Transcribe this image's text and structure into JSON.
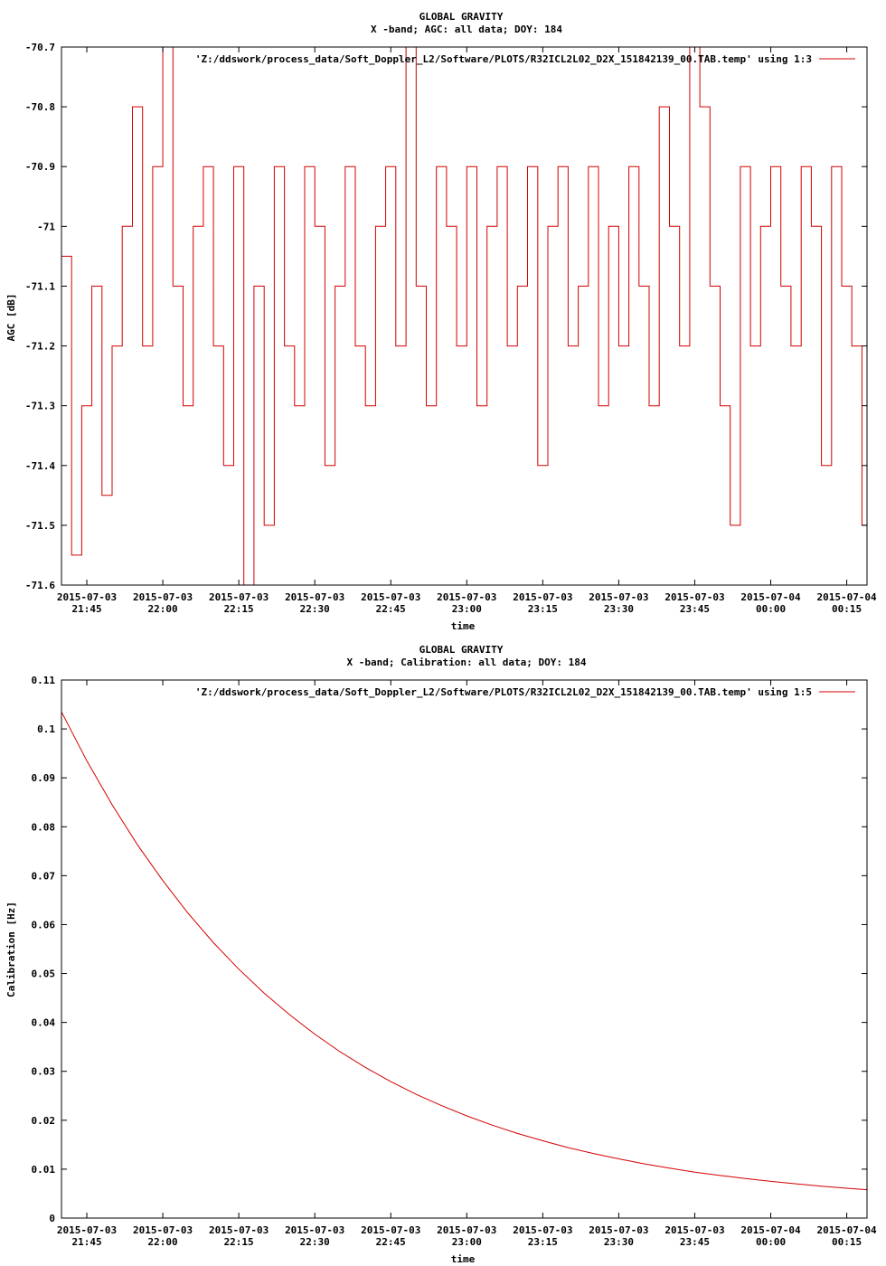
{
  "colors": {
    "series": "#d40000",
    "axis": "#000000",
    "background": "#ffffff"
  },
  "chart_data": [
    {
      "type": "line",
      "title": "GLOBAL GRAVITY",
      "subtitle": "X -band; AGC: all data; DOY: 184",
      "xlabel": "time",
      "ylabel": "AGC [dB]",
      "xlim": [
        "2015-07-03 21:40",
        "2015-07-04 00:19"
      ],
      "ylim": [
        -71.6,
        -70.7
      ],
      "grid": false,
      "legend_position": "top-right",
      "yticks": [
        {
          "value": -70.7,
          "label": "-70.7"
        },
        {
          "value": -70.8,
          "label": "-70.8"
        },
        {
          "value": -70.9,
          "label": "-70.9"
        },
        {
          "value": -71.0,
          "label": "-71"
        },
        {
          "value": -71.1,
          "label": "-71.1"
        },
        {
          "value": -71.2,
          "label": "-71.2"
        },
        {
          "value": -71.3,
          "label": "-71.3"
        },
        {
          "value": -71.4,
          "label": "-71.4"
        },
        {
          "value": -71.5,
          "label": "-71.5"
        },
        {
          "value": -71.6,
          "label": "-71.6"
        }
      ],
      "xticks": [
        {
          "value": "2015-07-03 21:45",
          "date": "2015-07-03",
          "time": "21:45"
        },
        {
          "value": "2015-07-03 22:00",
          "date": "2015-07-03",
          "time": "22:00"
        },
        {
          "value": "2015-07-03 22:15",
          "date": "2015-07-03",
          "time": "22:15"
        },
        {
          "value": "2015-07-03 22:30",
          "date": "2015-07-03",
          "time": "22:30"
        },
        {
          "value": "2015-07-03 22:45",
          "date": "2015-07-03",
          "time": "22:45"
        },
        {
          "value": "2015-07-03 23:00",
          "date": "2015-07-03",
          "time": "23:00"
        },
        {
          "value": "2015-07-03 23:15",
          "date": "2015-07-03",
          "time": "23:15"
        },
        {
          "value": "2015-07-03 23:30",
          "date": "2015-07-03",
          "time": "23:30"
        },
        {
          "value": "2015-07-03 23:45",
          "date": "2015-07-03",
          "time": "23:45"
        },
        {
          "value": "2015-07-04 00:00",
          "date": "2015-07-04",
          "time": "00:00"
        },
        {
          "value": "2015-07-04 00:15",
          "date": "2015-07-04",
          "time": "00:15"
        }
      ],
      "series": [
        {
          "name": "'Z:/ddswork/process_data/Soft_Doppler_L2/Software/PLOTS/R32ICL2L02_D2X_151842139_00.TAB.temp' using 1:3",
          "x": [
            "2015-07-03 21:40",
            "2015-07-03 21:42",
            "2015-07-03 21:44",
            "2015-07-03 21:46",
            "2015-07-03 21:48",
            "2015-07-03 21:50",
            "2015-07-03 21:52",
            "2015-07-03 21:54",
            "2015-07-03 21:56",
            "2015-07-03 21:58",
            "2015-07-03 22:00",
            "2015-07-03 22:02",
            "2015-07-03 22:04",
            "2015-07-03 22:06",
            "2015-07-03 22:08",
            "2015-07-03 22:10",
            "2015-07-03 22:12",
            "2015-07-03 22:14",
            "2015-07-03 22:16",
            "2015-07-03 22:18",
            "2015-07-03 22:20",
            "2015-07-03 22:22",
            "2015-07-03 22:24",
            "2015-07-03 22:26",
            "2015-07-03 22:28",
            "2015-07-03 22:30",
            "2015-07-03 22:32",
            "2015-07-03 22:34",
            "2015-07-03 22:36",
            "2015-07-03 22:38",
            "2015-07-03 22:40",
            "2015-07-03 22:42",
            "2015-07-03 22:44",
            "2015-07-03 22:46",
            "2015-07-03 22:48",
            "2015-07-03 22:50",
            "2015-07-03 22:52",
            "2015-07-03 22:54",
            "2015-07-03 22:56",
            "2015-07-03 22:58",
            "2015-07-03 23:00",
            "2015-07-03 23:02",
            "2015-07-03 23:04",
            "2015-07-03 23:06",
            "2015-07-03 23:08",
            "2015-07-03 23:10",
            "2015-07-03 23:12",
            "2015-07-03 23:14",
            "2015-07-03 23:16",
            "2015-07-03 23:18",
            "2015-07-03 23:20",
            "2015-07-03 23:22",
            "2015-07-03 23:24",
            "2015-07-03 23:26",
            "2015-07-03 23:28",
            "2015-07-03 23:30",
            "2015-07-03 23:32",
            "2015-07-03 23:34",
            "2015-07-03 23:36",
            "2015-07-03 23:38",
            "2015-07-03 23:40",
            "2015-07-03 23:42",
            "2015-07-03 23:44",
            "2015-07-03 23:46",
            "2015-07-03 23:48",
            "2015-07-03 23:50",
            "2015-07-03 23:52",
            "2015-07-03 23:54",
            "2015-07-03 23:56",
            "2015-07-03 23:58",
            "2015-07-04 00:00",
            "2015-07-04 00:02",
            "2015-07-04 00:04",
            "2015-07-04 00:06",
            "2015-07-04 00:08",
            "2015-07-04 00:10",
            "2015-07-04 00:12",
            "2015-07-04 00:14",
            "2015-07-04 00:16",
            "2015-07-04 00:18",
            "2015-07-04 00:19"
          ],
          "values": [
            -71.05,
            -71.55,
            -71.3,
            -71.1,
            -71.45,
            -71.2,
            -71.0,
            -70.8,
            -71.2,
            -70.9,
            -70.7,
            -71.1,
            -71.3,
            -71.0,
            -70.9,
            -71.2,
            -71.4,
            -70.9,
            -71.6,
            -71.1,
            -71.5,
            -70.9,
            -71.2,
            -71.3,
            -70.9,
            -71.0,
            -71.4,
            -71.1,
            -70.9,
            -71.2,
            -71.3,
            -71.0,
            -70.9,
            -71.2,
            -70.7,
            -71.1,
            -71.3,
            -70.9,
            -71.0,
            -71.2,
            -70.9,
            -71.3,
            -71.0,
            -70.9,
            -71.2,
            -71.1,
            -70.9,
            -71.4,
            -71.0,
            -70.9,
            -71.2,
            -71.1,
            -70.9,
            -71.3,
            -71.0,
            -71.2,
            -70.9,
            -71.1,
            -71.3,
            -70.8,
            -71.0,
            -71.2,
            -70.7,
            -70.8,
            -71.1,
            -71.3,
            -71.5,
            -70.9,
            -71.2,
            -71.0,
            -70.9,
            -71.1,
            -71.2,
            -70.9,
            -71.0,
            -71.4,
            -70.9,
            -71.1,
            -71.2,
            -71.5,
            -71.1
          ]
        }
      ]
    },
    {
      "type": "line",
      "title": "GLOBAL GRAVITY",
      "subtitle": "X -band; Calibration: all data; DOY: 184",
      "xlabel": "time",
      "ylabel": "Calibration [Hz]",
      "xlim": [
        "2015-07-03 21:40",
        "2015-07-04 00:19"
      ],
      "ylim": [
        0,
        0.11
      ],
      "grid": false,
      "legend_position": "top-right",
      "yticks": [
        {
          "value": 0.11,
          "label": "0.11"
        },
        {
          "value": 0.1,
          "label": "0.1"
        },
        {
          "value": 0.09,
          "label": "0.09"
        },
        {
          "value": 0.08,
          "label": "0.08"
        },
        {
          "value": 0.07,
          "label": "0.07"
        },
        {
          "value": 0.06,
          "label": "0.06"
        },
        {
          "value": 0.05,
          "label": "0.05"
        },
        {
          "value": 0.04,
          "label": "0.04"
        },
        {
          "value": 0.03,
          "label": "0.03"
        },
        {
          "value": 0.02,
          "label": "0.02"
        },
        {
          "value": 0.01,
          "label": "0.01"
        },
        {
          "value": 0.0,
          "label": "0"
        }
      ],
      "xticks": [
        {
          "value": "2015-07-03 21:45",
          "date": "2015-07-03",
          "time": "21:45"
        },
        {
          "value": "2015-07-03 22:00",
          "date": "2015-07-03",
          "time": "22:00"
        },
        {
          "value": "2015-07-03 22:15",
          "date": "2015-07-03",
          "time": "22:15"
        },
        {
          "value": "2015-07-03 22:30",
          "date": "2015-07-03",
          "time": "22:30"
        },
        {
          "value": "2015-07-03 22:45",
          "date": "2015-07-03",
          "time": "22:45"
        },
        {
          "value": "2015-07-03 23:00",
          "date": "2015-07-03",
          "time": "23:00"
        },
        {
          "value": "2015-07-03 23:15",
          "date": "2015-07-03",
          "time": "23:15"
        },
        {
          "value": "2015-07-03 23:30",
          "date": "2015-07-03",
          "time": "23:30"
        },
        {
          "value": "2015-07-03 23:45",
          "date": "2015-07-03",
          "time": "23:45"
        },
        {
          "value": "2015-07-04 00:00",
          "date": "2015-07-04",
          "time": "00:00"
        },
        {
          "value": "2015-07-04 00:15",
          "date": "2015-07-04",
          "time": "00:15"
        }
      ],
      "series": [
        {
          "name": "'Z:/ddswork/process_data/Soft_Doppler_L2/Software/PLOTS/R32ICL2L02_D2X_151842139_00.TAB.temp' using 1:5",
          "x": [
            "2015-07-03 21:40",
            "2015-07-03 21:45",
            "2015-07-03 21:50",
            "2015-07-03 21:55",
            "2015-07-03 22:00",
            "2015-07-03 22:05",
            "2015-07-03 22:10",
            "2015-07-03 22:15",
            "2015-07-03 22:20",
            "2015-07-03 22:25",
            "2015-07-03 22:30",
            "2015-07-03 22:35",
            "2015-07-03 22:40",
            "2015-07-03 22:45",
            "2015-07-03 22:50",
            "2015-07-03 22:55",
            "2015-07-03 23:00",
            "2015-07-03 23:05",
            "2015-07-03 23:10",
            "2015-07-03 23:15",
            "2015-07-03 23:20",
            "2015-07-03 23:25",
            "2015-07-03 23:30",
            "2015-07-03 23:35",
            "2015-07-03 23:40",
            "2015-07-03 23:45",
            "2015-07-03 23:50",
            "2015-07-03 23:55",
            "2015-07-04 00:00",
            "2015-07-04 00:05",
            "2015-07-04 00:10",
            "2015-07-04 00:15",
            "2015-07-04 00:19"
          ],
          "values": [
            0.1035,
            0.0935,
            0.0845,
            0.0763,
            0.069,
            0.0623,
            0.0563,
            0.0509,
            0.046,
            0.0416,
            0.0376,
            0.034,
            0.0308,
            0.0279,
            0.0253,
            0.023,
            0.0209,
            0.019,
            0.0173,
            0.0158,
            0.0144,
            0.0132,
            0.0121,
            0.0111,
            0.0102,
            0.0094,
            0.0087,
            0.0081,
            0.0075,
            0.007,
            0.0065,
            0.0061,
            0.0058
          ]
        }
      ]
    }
  ]
}
